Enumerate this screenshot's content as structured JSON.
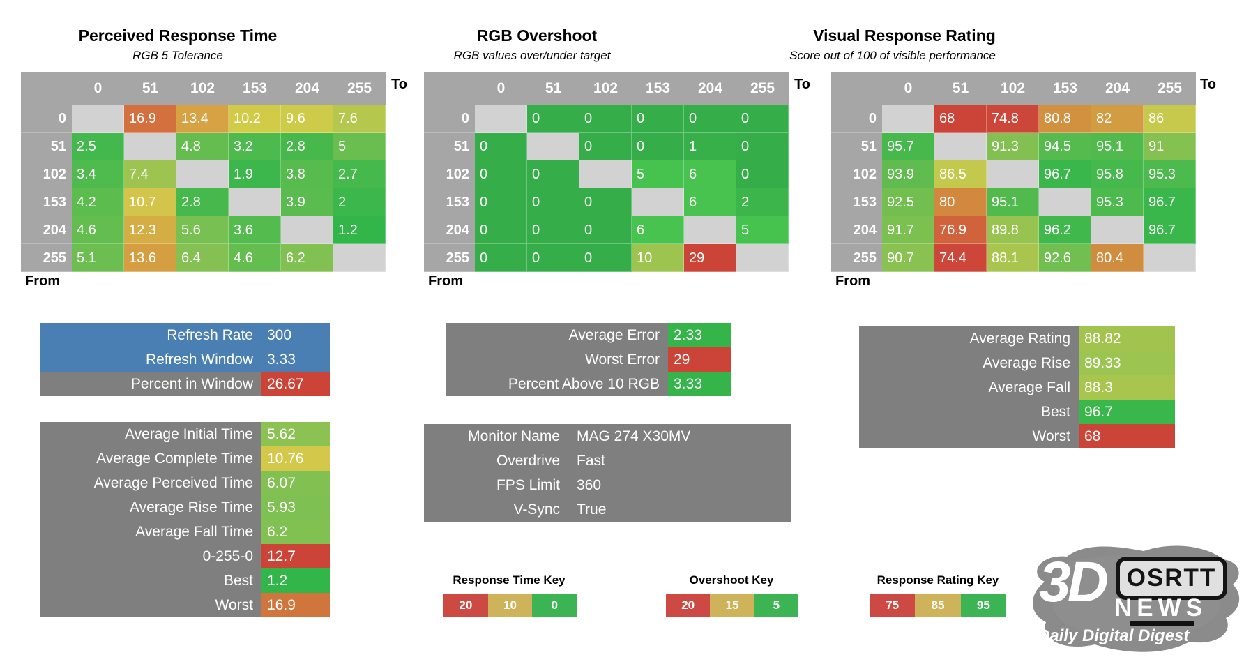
{
  "palette": {
    "table_header": "#a6a6a6",
    "diagonal": "#d2d2d2",
    "box_grey": "#7f7f7f",
    "box_blue": "#4a7fb4",
    "key_red": "#cc4a43",
    "key_yellow": "#cfb35a",
    "key_green": "#3cb454"
  },
  "tables": [
    {
      "title": "Perceived Response Time",
      "subtitle": "RGB 5 Tolerance",
      "axis": {
        "to": "To",
        "from": "From"
      },
      "columns": [
        "0",
        "51",
        "102",
        "153",
        "204",
        "255"
      ],
      "row_headers": [
        "0",
        "51",
        "102",
        "153",
        "204",
        "255"
      ],
      "cells": [
        [
          null,
          {
            "v": "16.9",
            "c": "#d4703d"
          },
          {
            "v": "13.4",
            "c": "#d6a243"
          },
          {
            "v": "10.2",
            "c": "#d2cb48"
          },
          {
            "v": "9.6",
            "c": "#cecb49"
          },
          {
            "v": "7.6",
            "c": "#b5c84d"
          }
        ],
        [
          {
            "v": "2.5",
            "c": "#43b84c"
          },
          null,
          {
            "v": "4.8",
            "c": "#66bd4f"
          },
          {
            "v": "3.2",
            "c": "#4cba4d"
          },
          {
            "v": "2.8",
            "c": "#47b94c"
          },
          {
            "v": "5",
            "c": "#6abe50"
          }
        ],
        [
          {
            "v": "3.4",
            "c": "#4fba4d"
          },
          {
            "v": "7.4",
            "c": "#9dc450"
          },
          null,
          {
            "v": "1.9",
            "c": "#3bb74b"
          },
          {
            "v": "3.8",
            "c": "#58bb4e"
          },
          {
            "v": "2.7",
            "c": "#46b94c"
          }
        ],
        [
          {
            "v": "4.2",
            "c": "#5cbc4e"
          },
          {
            "v": "10.7",
            "c": "#d3c54b"
          },
          {
            "v": "2.8",
            "c": "#47b94c"
          },
          null,
          {
            "v": "3.9",
            "c": "#5abc4e"
          },
          {
            "v": "2",
            "c": "#3cb74b"
          }
        ],
        [
          {
            "v": "4.6",
            "c": "#63bd4f"
          },
          {
            "v": "12.3",
            "c": "#d5ad45"
          },
          {
            "v": "5.6",
            "c": "#77c051"
          },
          {
            "v": "3.6",
            "c": "#54bb4e"
          },
          null,
          {
            "v": "1.2",
            "c": "#32b649"
          }
        ],
        [
          {
            "v": "5.1",
            "c": "#6cbe50"
          },
          {
            "v": "13.6",
            "c": "#d59f41"
          },
          {
            "v": "6.4",
            "c": "#84c152"
          },
          {
            "v": "4.6",
            "c": "#63bd4f"
          },
          {
            "v": "6.2",
            "c": "#81c151"
          },
          null
        ]
      ]
    },
    {
      "title": "RGB Overshoot",
      "subtitle": "RGB values over/under target",
      "axis": {
        "to": "To",
        "from": "From"
      },
      "columns": [
        "0",
        "51",
        "102",
        "153",
        "204",
        "255"
      ],
      "row_headers": [
        "0",
        "51",
        "102",
        "153",
        "204",
        "255"
      ],
      "cells": [
        [
          null,
          {
            "v": "0",
            "c": "#35ad48"
          },
          {
            "v": "0",
            "c": "#35ad48"
          },
          {
            "v": "0",
            "c": "#35ad48"
          },
          {
            "v": "0",
            "c": "#35ad48"
          },
          {
            "v": "0",
            "c": "#35ad48"
          }
        ],
        [
          {
            "v": "0",
            "c": "#35ad48"
          },
          null,
          {
            "v": "0",
            "c": "#35ad48"
          },
          {
            "v": "0",
            "c": "#35ad48"
          },
          {
            "v": "1",
            "c": "#38b049"
          },
          {
            "v": "0",
            "c": "#35ad48"
          }
        ],
        [
          {
            "v": "0",
            "c": "#35ad48"
          },
          {
            "v": "0",
            "c": "#35ad48"
          },
          null,
          {
            "v": "5",
            "c": "#46c24e"
          },
          {
            "v": "6",
            "c": "#49c34f"
          },
          {
            "v": "0",
            "c": "#35ad48"
          }
        ],
        [
          {
            "v": "0",
            "c": "#35ad48"
          },
          {
            "v": "0",
            "c": "#35ad48"
          },
          {
            "v": "0",
            "c": "#35ad48"
          },
          null,
          {
            "v": "6",
            "c": "#49c34f"
          },
          {
            "v": "2",
            "c": "#3cb64a"
          }
        ],
        [
          {
            "v": "0",
            "c": "#35ad48"
          },
          {
            "v": "0",
            "c": "#35ad48"
          },
          {
            "v": "0",
            "c": "#35ad48"
          },
          {
            "v": "6",
            "c": "#49c34f"
          },
          null,
          {
            "v": "5",
            "c": "#46c24e"
          }
        ],
        [
          {
            "v": "0",
            "c": "#35ad48"
          },
          {
            "v": "0",
            "c": "#35ad48"
          },
          {
            "v": "0",
            "c": "#35ad48"
          },
          {
            "v": "10",
            "c": "#9cc44f"
          },
          {
            "v": "29",
            "c": "#cc4437"
          },
          null
        ]
      ]
    },
    {
      "title": "Visual Response Rating",
      "subtitle": "Score out of 100 of visible performance",
      "axis": {
        "to": "To",
        "from": "From"
      },
      "columns": [
        "0",
        "51",
        "102",
        "153",
        "204",
        "255"
      ],
      "row_headers": [
        "0",
        "51",
        "102",
        "153",
        "204",
        "255"
      ],
      "cells": [
        [
          null,
          {
            "v": "68",
            "c": "#cc4437"
          },
          {
            "v": "74.8",
            "c": "#cc4739"
          },
          {
            "v": "80.8",
            "c": "#d1913f"
          },
          {
            "v": "82",
            "c": "#d19c42"
          },
          {
            "v": "86",
            "c": "#c6c94b"
          }
        ],
        [
          {
            "v": "95.7",
            "c": "#47b94c"
          },
          null,
          {
            "v": "91.3",
            "c": "#82c151"
          },
          {
            "v": "94.5",
            "c": "#56bb4e"
          },
          {
            "v": "95.1",
            "c": "#50ba4d"
          },
          {
            "v": "91",
            "c": "#85c151"
          }
        ],
        [
          {
            "v": "93.9",
            "c": "#60bc4f"
          },
          {
            "v": "86.5",
            "c": "#c3c94c"
          },
          null,
          {
            "v": "96.7",
            "c": "#3ab74a"
          },
          {
            "v": "95.8",
            "c": "#46b94c"
          },
          {
            "v": "95.3",
            "c": "#4cba4d"
          }
        ],
        [
          {
            "v": "92.5",
            "c": "#72bf50"
          },
          {
            "v": "80",
            "c": "#d2883e"
          },
          {
            "v": "95.1",
            "c": "#50ba4d"
          },
          null,
          {
            "v": "95.3",
            "c": "#4cba4d"
          },
          {
            "v": "96.7",
            "c": "#3ab74a"
          }
        ],
        [
          {
            "v": "91.7",
            "c": "#7cc050"
          },
          {
            "v": "76.9",
            "c": "#d0633c"
          },
          {
            "v": "89.8",
            "c": "#98c350"
          },
          {
            "v": "96.2",
            "c": "#40b84b"
          },
          null,
          {
            "v": "96.7",
            "c": "#3ab74a"
          }
        ],
        [
          {
            "v": "90.7",
            "c": "#8ac251"
          },
          {
            "v": "74.4",
            "c": "#cc4739"
          },
          {
            "v": "88.1",
            "c": "#aac54e"
          },
          {
            "v": "92.6",
            "c": "#71bf50"
          },
          {
            "v": "80.4",
            "c": "#d18d3f"
          },
          null
        ]
      ]
    }
  ],
  "chart_data": [
    {
      "type": "heatmap",
      "title": "Perceived Response Time",
      "subtitle": "RGB 5 Tolerance",
      "x_label": "To",
      "y_label": "From",
      "x": [
        0,
        51,
        102,
        153,
        204,
        255
      ],
      "y": [
        0,
        51,
        102,
        153,
        204,
        255
      ],
      "values": [
        [
          null,
          16.9,
          13.4,
          10.2,
          9.6,
          7.6
        ],
        [
          2.5,
          null,
          4.8,
          3.2,
          2.8,
          5
        ],
        [
          3.4,
          7.4,
          null,
          1.9,
          3.8,
          2.7
        ],
        [
          4.2,
          10.7,
          2.8,
          null,
          3.9,
          2
        ],
        [
          4.6,
          12.3,
          5.6,
          3.6,
          null,
          1.2
        ],
        [
          5.1,
          13.6,
          6.4,
          4.6,
          6.2,
          null
        ]
      ],
      "color_key": {
        "red": 20,
        "yellow": 10,
        "green": 0
      }
    },
    {
      "type": "heatmap",
      "title": "RGB Overshoot",
      "subtitle": "RGB values over/under target",
      "x_label": "To",
      "y_label": "From",
      "x": [
        0,
        51,
        102,
        153,
        204,
        255
      ],
      "y": [
        0,
        51,
        102,
        153,
        204,
        255
      ],
      "values": [
        [
          null,
          0,
          0,
          0,
          0,
          0
        ],
        [
          0,
          null,
          0,
          0,
          1,
          0
        ],
        [
          0,
          0,
          null,
          5,
          6,
          0
        ],
        [
          0,
          0,
          0,
          null,
          6,
          2
        ],
        [
          0,
          0,
          0,
          6,
          null,
          5
        ],
        [
          0,
          0,
          0,
          10,
          29,
          null
        ]
      ],
      "color_key": {
        "red": 20,
        "yellow": 15,
        "green": 5
      }
    },
    {
      "type": "heatmap",
      "title": "Visual Response Rating",
      "subtitle": "Score out of 100 of visible performance",
      "x_label": "To",
      "y_label": "From",
      "x": [
        0,
        51,
        102,
        153,
        204,
        255
      ],
      "y": [
        0,
        51,
        102,
        153,
        204,
        255
      ],
      "values": [
        [
          null,
          68,
          74.8,
          80.8,
          82,
          86
        ],
        [
          95.7,
          null,
          91.3,
          94.5,
          95.1,
          91
        ],
        [
          93.9,
          86.5,
          null,
          96.7,
          95.8,
          95.3
        ],
        [
          92.5,
          80,
          95.1,
          null,
          95.3,
          96.7
        ],
        [
          91.7,
          76.9,
          89.8,
          96.2,
          null,
          96.7
        ],
        [
          90.7,
          74.4,
          88.1,
          92.6,
          80.4,
          null
        ]
      ],
      "color_key": {
        "red": 75,
        "yellow": 85,
        "green": 95
      }
    }
  ],
  "summary_boxes": {
    "refresh": {
      "rows": [
        {
          "label": "Refresh Rate",
          "value": "300",
          "row_bg": "#4a7fb4"
        },
        {
          "label": "Refresh Window",
          "value": "3.33",
          "row_bg": "#4a7fb4"
        },
        {
          "label": "Percent in Window",
          "value": "26.67",
          "row_bg": "#7f7f7f",
          "value_bg": "#cc4437"
        }
      ]
    },
    "times": {
      "rows": [
        {
          "label": "Average Initial Time",
          "value": "5.62",
          "value_bg": "#8cc252"
        },
        {
          "label": "Average Complete Time",
          "value": "10.76",
          "value_bg": "#d3c84a"
        },
        {
          "label": "Average Perceived Time",
          "value": "6.07",
          "value_bg": "#82c151"
        },
        {
          "label": "Average Rise Time",
          "value": "5.93",
          "value_bg": "#7ec051"
        },
        {
          "label": "Average Fall Time",
          "value": "6.2",
          "value_bg": "#81c151"
        },
        {
          "label": "0-255-0",
          "value": "12.7",
          "value_bg": "#cc4437"
        },
        {
          "label": "Best",
          "value": "1.2",
          "value_bg": "#32b649"
        },
        {
          "label": "Worst",
          "value": "16.9",
          "value_bg": "#d0763d"
        }
      ]
    },
    "error": {
      "rows": [
        {
          "label": "Average Error",
          "value": "2.33",
          "value_bg": "#35b44a"
        },
        {
          "label": "Worst Error",
          "value": "29",
          "value_bg": "#cc4437"
        },
        {
          "label": "Percent Above 10 RGB",
          "value": "3.33",
          "value_bg": "#35b44a"
        }
      ]
    },
    "monitor": {
      "rows": [
        {
          "label": "Monitor Name",
          "value": "MAG 274 X30MV"
        },
        {
          "label": "Overdrive",
          "value": "Fast"
        },
        {
          "label": "FPS Limit",
          "value": "360"
        },
        {
          "label": "V-Sync",
          "value": "True"
        }
      ]
    },
    "rating": {
      "rows": [
        {
          "label": "Average Rating",
          "value": "88.82",
          "value_bg": "#a2c44f"
        },
        {
          "label": "Average Rise",
          "value": "89.33",
          "value_bg": "#9cc450"
        },
        {
          "label": "Average Fall",
          "value": "88.3",
          "value_bg": "#a8c54e"
        },
        {
          "label": "Best",
          "value": "96.7",
          "value_bg": "#3ab74a"
        },
        {
          "label": "Worst",
          "value": "68",
          "value_bg": "#cc4437"
        }
      ]
    }
  },
  "keys": [
    {
      "title": "Response Time Key",
      "cells": [
        {
          "v": "20",
          "c": "#cc4a43"
        },
        {
          "v": "10",
          "c": "#cfb35a"
        },
        {
          "v": "0",
          "c": "#3cb454"
        }
      ]
    },
    {
      "title": "Overshoot Key",
      "cells": [
        {
          "v": "20",
          "c": "#cc4a43"
        },
        {
          "v": "15",
          "c": "#cfb35a"
        },
        {
          "v": "5",
          "c": "#3cb454"
        }
      ]
    },
    {
      "title": "Response Rating Key",
      "cells": [
        {
          "v": "75",
          "c": "#cc4a43"
        },
        {
          "v": "85",
          "c": "#cfb35a"
        },
        {
          "v": "95",
          "c": "#3cb454"
        }
      ]
    }
  ],
  "logo": {
    "brand": "3D",
    "news": "NEWS",
    "tagline": "Daily Digital Digest",
    "badge": "OSRTT"
  }
}
